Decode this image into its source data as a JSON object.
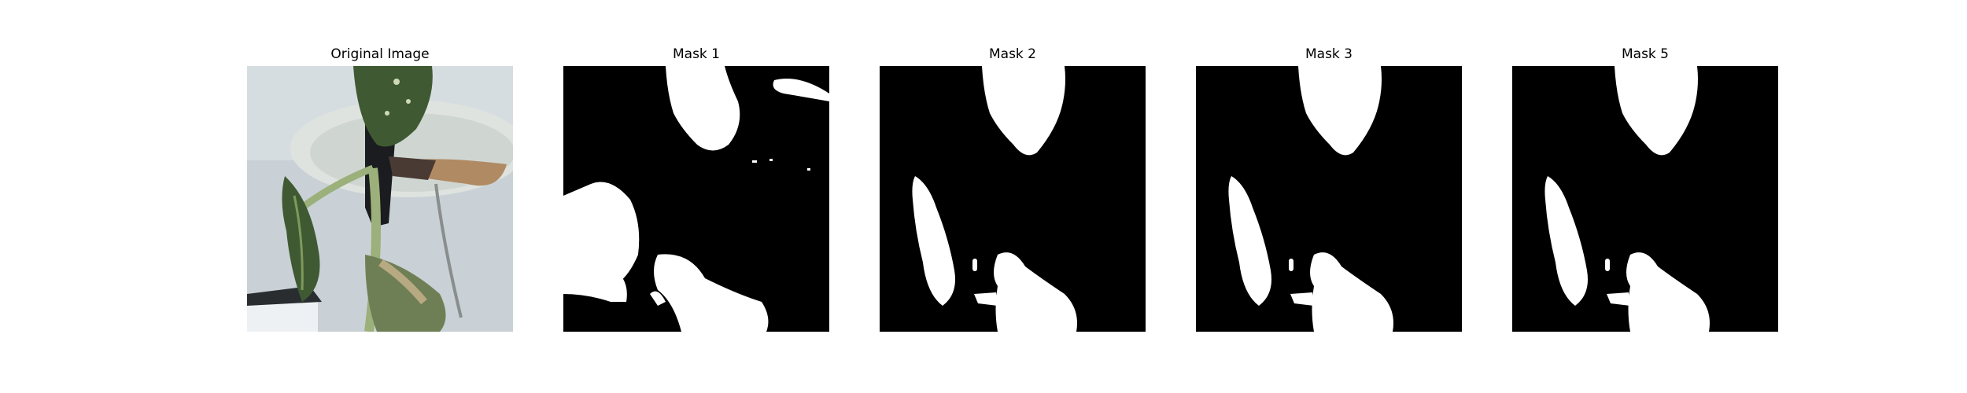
{
  "figure": {
    "panels": [
      {
        "title": "Original Image",
        "kind": "photo"
      },
      {
        "title": "Mask 1",
        "kind": "mask"
      },
      {
        "title": "Mask 2",
        "kind": "mask"
      },
      {
        "title": "Mask 3",
        "kind": "mask"
      },
      {
        "title": "Mask 5",
        "kind": "mask"
      }
    ]
  },
  "colors": {
    "mask_background": "#000000",
    "mask_foreground": "#ffffff",
    "photo_background": "#c9d1d6",
    "leaf_dark_green": "#3f5a33",
    "leaf_light_green": "#7f9a5b",
    "stem_green": "#9bb07a",
    "pot_black": "#1a1c1f",
    "dry_leaf_brown": "#b08a63",
    "shelf_white": "#eef1f4"
  }
}
